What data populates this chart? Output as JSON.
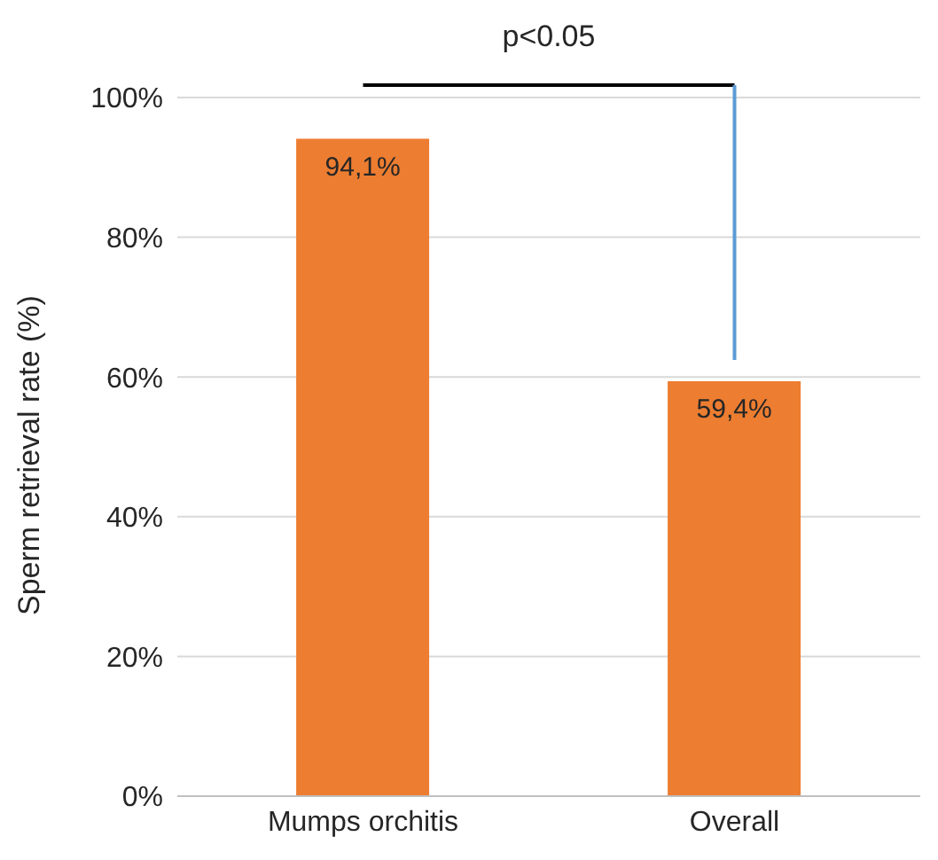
{
  "chart_data": {
    "type": "bar",
    "ylabel": "Sperm retrieval rate (%)",
    "categories": [
      "Mumps orchitis",
      "Overall"
    ],
    "values": [
      94.1,
      59.4
    ],
    "color": "#ed7d31",
    "value_labels": [
      "94,1%",
      "59,4%"
    ],
    "ylim": [
      0,
      100
    ],
    "yticks": [
      {
        "value": 0,
        "label": "0%"
      },
      {
        "value": 20,
        "label": "20%"
      },
      {
        "value": 40,
        "label": "40%"
      },
      {
        "value": 60,
        "label": "60%"
      },
      {
        "value": 80,
        "label": "80%"
      },
      {
        "value": 100,
        "label": "100%"
      }
    ],
    "grid": "y",
    "annotations": [
      "p<0.05"
    ]
  }
}
